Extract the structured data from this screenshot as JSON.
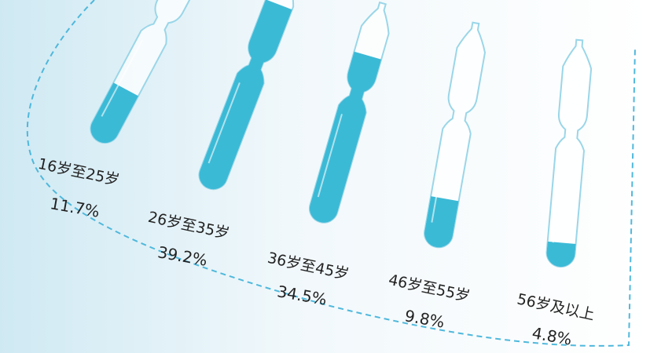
{
  "chart_data": {
    "type": "bar",
    "categories": [
      "16岁至25岁",
      "26岁至35岁",
      "36岁至45岁",
      "46岁至55岁",
      "56岁及以上"
    ],
    "values": [
      11.7,
      39.2,
      34.5,
      9.8,
      4.8
    ],
    "value_labels": [
      "11.7%",
      "39.2%",
      "34.5%",
      "9.8%",
      "4.8%"
    ],
    "color": "#3bbad6"
  }
}
